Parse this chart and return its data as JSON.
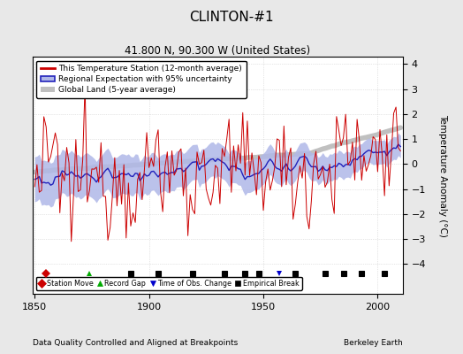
{
  "title": "CLINTON-#1",
  "subtitle": "41.800 N, 90.300 W (United States)",
  "xlabel_left": "Data Quality Controlled and Aligned at Breakpoints",
  "xlabel_right": "Berkeley Earth",
  "ylabel": "Temperature Anomaly (°C)",
  "xlim": [
    1849,
    2011
  ],
  "ylim": [
    -5.2,
    4.3
  ],
  "yticks": [
    -4,
    -3,
    -2,
    -1,
    0,
    1,
    2,
    3,
    4
  ],
  "xticks": [
    1850,
    1900,
    1950,
    2000
  ],
  "background_color": "#e8e8e8",
  "plot_bg_color": "#ffffff",
  "station_color": "#cc0000",
  "regional_line_color": "#2222bb",
  "regional_fill_color": "#b0b8e8",
  "global_color": "#c0c0c0",
  "seed": 12345,
  "legend_entries": [
    "This Temperature Station (12-month average)",
    "Regional Expectation with 95% uncertainty",
    "Global Land (5-year average)"
  ],
  "marker_legend": [
    {
      "label": "Station Move",
      "color": "#cc0000",
      "marker": "D"
    },
    {
      "label": "Record Gap",
      "color": "#00aa00",
      "marker": "^"
    },
    {
      "label": "Time of Obs. Change",
      "color": "#0000cc",
      "marker": "v"
    },
    {
      "label": "Empirical Break",
      "color": "#111111",
      "marker": "s"
    }
  ],
  "station_markers": [
    {
      "year": 1855,
      "type": "D",
      "color": "#cc0000"
    },
    {
      "year": 1874,
      "type": "^",
      "color": "#00aa00"
    },
    {
      "year": 1892,
      "type": "s",
      "color": "#111111"
    },
    {
      "year": 1904,
      "type": "s",
      "color": "#111111"
    },
    {
      "year": 1919,
      "type": "s",
      "color": "#111111"
    },
    {
      "year": 1933,
      "type": "s",
      "color": "#111111"
    },
    {
      "year": 1942,
      "type": "s",
      "color": "#111111"
    },
    {
      "year": 1948,
      "type": "s",
      "color": "#111111"
    },
    {
      "year": 1957,
      "type": "v",
      "color": "#0000cc"
    },
    {
      "year": 1964,
      "type": "s",
      "color": "#111111"
    },
    {
      "year": 1977,
      "type": "s",
      "color": "#111111"
    },
    {
      "year": 1985,
      "type": "s",
      "color": "#111111"
    },
    {
      "year": 1993,
      "type": "s",
      "color": "#111111"
    },
    {
      "year": 2003,
      "type": "s",
      "color": "#111111"
    }
  ]
}
